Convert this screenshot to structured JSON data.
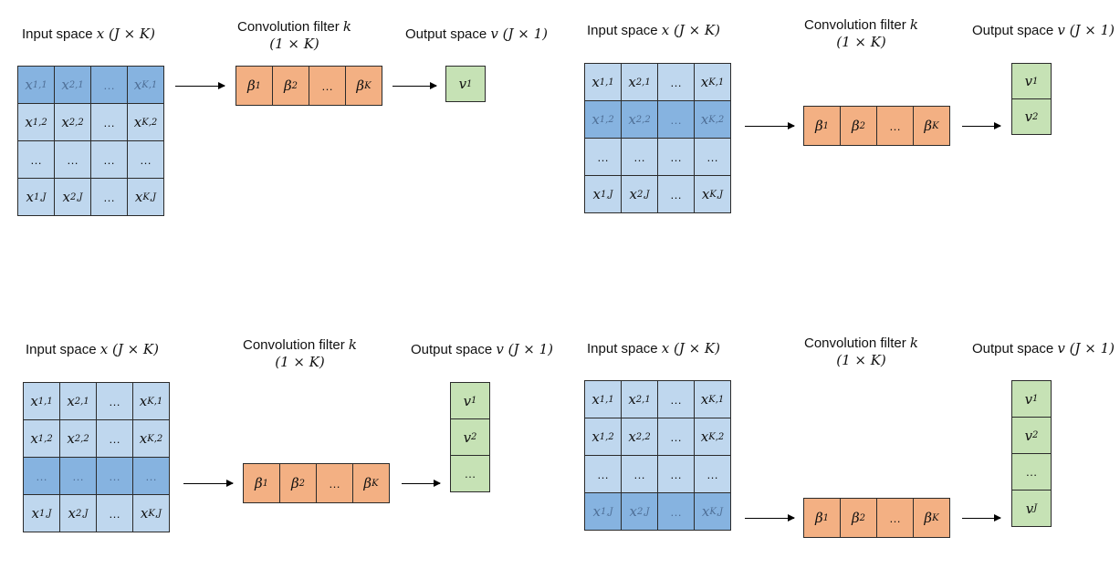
{
  "titles": {
    "input_prefix": "Input space ",
    "input_math": "x (J × K)",
    "filter_line1_prefix": "Convolution filter ",
    "filter_line1_math": "k",
    "filter_line2": "(1 × K)",
    "output_prefix": "Output space ",
    "output_math": "v (J × 1)"
  },
  "input_matrix": [
    [
      {
        "b": "x",
        "s": "1,1"
      },
      {
        "b": "x",
        "s": "2,1"
      },
      {
        "b": "…",
        "s": ""
      },
      {
        "b": "x",
        "s": "K,1"
      }
    ],
    [
      {
        "b": "x",
        "s": "1,2"
      },
      {
        "b": "x",
        "s": "2,2"
      },
      {
        "b": "…",
        "s": ""
      },
      {
        "b": "x",
        "s": "K,2"
      }
    ],
    [
      {
        "b": "…",
        "s": ""
      },
      {
        "b": "…",
        "s": ""
      },
      {
        "b": "…",
        "s": ""
      },
      {
        "b": "…",
        "s": ""
      }
    ],
    [
      {
        "b": "x",
        "s": "1,J"
      },
      {
        "b": "x",
        "s": "2,J"
      },
      {
        "b": "…",
        "s": ""
      },
      {
        "b": "x",
        "s": "K,J"
      }
    ]
  ],
  "filter": [
    {
      "b": "β",
      "s": "1"
    },
    {
      "b": "β",
      "s": "2"
    },
    {
      "b": "…",
      "s": ""
    },
    {
      "b": "β",
      "s": "K"
    }
  ],
  "outputs": [
    {
      "b": "v",
      "s": "1"
    },
    {
      "b": "v",
      "s": "2"
    },
    {
      "b": "…",
      "s": ""
    },
    {
      "b": "v",
      "s": "J"
    }
  ],
  "panels": [
    {
      "highlighted_row": 0,
      "output_count": 1
    },
    {
      "highlighted_row": 1,
      "output_count": 2
    },
    {
      "highlighted_row": 2,
      "output_count": 3
    },
    {
      "highlighted_row": 3,
      "output_count": 4
    }
  ],
  "colors": {
    "input": "#bfd7ee",
    "input_highlight": "#86b3e0",
    "filter": "#f3b083",
    "output": "#c6e2b5"
  }
}
